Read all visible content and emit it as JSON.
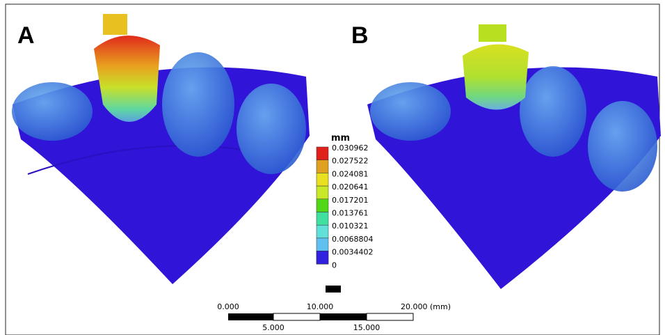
{
  "panels": {
    "a": {
      "label": "A"
    },
    "b": {
      "label": "B"
    }
  },
  "legend": {
    "unit": "mm",
    "labels": [
      "0.030962",
      "0.027522",
      "0.024081",
      "0.020641",
      "0.017201",
      "0.013761",
      "0.010321",
      "0.0068804",
      "0.0034402",
      "0"
    ]
  },
  "scale_bar": {
    "top_labels": [
      "0.000",
      "10.000",
      "20.000 (mm)"
    ],
    "bottom_labels": [
      "5.000",
      "15.000"
    ]
  }
}
